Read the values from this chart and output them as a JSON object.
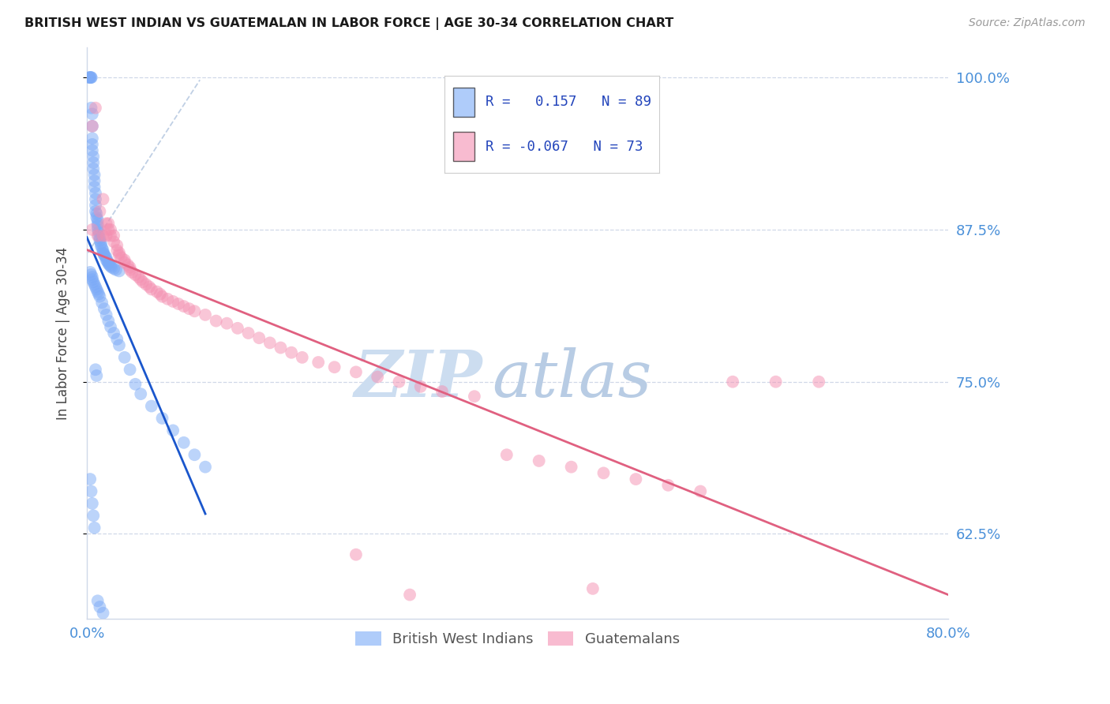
{
  "title": "BRITISH WEST INDIAN VS GUATEMALAN IN LABOR FORCE | AGE 30-34 CORRELATION CHART",
  "source_text": "Source: ZipAtlas.com",
  "ylabel": "In Labor Force | Age 30-34",
  "xlim": [
    0.0,
    0.8
  ],
  "ylim": [
    0.555,
    1.025
  ],
  "yticks": [
    0.625,
    0.75,
    0.875,
    1.0
  ],
  "ytick_labels": [
    "62.5%",
    "75.0%",
    "87.5%",
    "100.0%"
  ],
  "xtick_show": [
    "0.0%",
    "80.0%"
  ],
  "blue_R": 0.157,
  "blue_N": 89,
  "pink_R": -0.067,
  "pink_N": 73,
  "blue_color": "#7baaf7",
  "pink_color": "#f48fb1",
  "trendline_blue": "#1a56cc",
  "trendline_pink": "#e06080",
  "trendline_dashed_color": "#b0c4de",
  "axis_label_color": "#4a90d9",
  "grid_color": "#d0d8e8",
  "watermark_text": "ZIPatlas",
  "watermark_color": "#d5e5f5",
  "legend_border_color": "#cccccc",
  "blue_x": [
    0.002,
    0.003,
    0.003,
    0.004,
    0.004,
    0.004,
    0.005,
    0.005,
    0.005,
    0.005,
    0.005,
    0.006,
    0.006,
    0.006,
    0.007,
    0.007,
    0.007,
    0.008,
    0.008,
    0.008,
    0.008,
    0.009,
    0.009,
    0.01,
    0.01,
    0.01,
    0.01,
    0.011,
    0.011,
    0.012,
    0.012,
    0.013,
    0.013,
    0.014,
    0.015,
    0.015,
    0.016,
    0.016,
    0.017,
    0.018,
    0.018,
    0.019,
    0.02,
    0.02,
    0.021,
    0.022,
    0.023,
    0.025,
    0.027,
    0.03,
    0.003,
    0.004,
    0.005,
    0.005,
    0.006,
    0.007,
    0.008,
    0.009,
    0.01,
    0.011,
    0.012,
    0.014,
    0.016,
    0.018,
    0.02,
    0.022,
    0.025,
    0.028,
    0.03,
    0.035,
    0.04,
    0.045,
    0.05,
    0.06,
    0.07,
    0.08,
    0.09,
    0.1,
    0.11,
    0.003,
    0.004,
    0.005,
    0.006,
    0.007,
    0.008,
    0.009,
    0.01,
    0.012,
    0.015
  ],
  "blue_y": [
    1.0,
    1.0,
    1.0,
    1.0,
    1.0,
    0.975,
    0.97,
    0.96,
    0.95,
    0.945,
    0.94,
    0.935,
    0.93,
    0.925,
    0.92,
    0.915,
    0.91,
    0.905,
    0.9,
    0.895,
    0.89,
    0.888,
    0.885,
    0.883,
    0.88,
    0.878,
    0.875,
    0.873,
    0.87,
    0.868,
    0.866,
    0.864,
    0.862,
    0.86,
    0.858,
    0.856,
    0.855,
    0.854,
    0.853,
    0.852,
    0.85,
    0.849,
    0.848,
    0.847,
    0.846,
    0.845,
    0.844,
    0.843,
    0.842,
    0.841,
    0.84,
    0.838,
    0.836,
    0.834,
    0.832,
    0.83,
    0.828,
    0.826,
    0.824,
    0.822,
    0.82,
    0.815,
    0.81,
    0.805,
    0.8,
    0.795,
    0.79,
    0.785,
    0.78,
    0.77,
    0.76,
    0.748,
    0.74,
    0.73,
    0.72,
    0.71,
    0.7,
    0.69,
    0.68,
    0.67,
    0.66,
    0.65,
    0.64,
    0.63,
    0.76,
    0.755,
    0.57,
    0.565,
    0.56
  ],
  "pink_x": [
    0.005,
    0.005,
    0.008,
    0.01,
    0.012,
    0.015,
    0.015,
    0.018,
    0.018,
    0.02,
    0.02,
    0.022,
    0.022,
    0.025,
    0.025,
    0.028,
    0.028,
    0.03,
    0.03,
    0.032,
    0.035,
    0.035,
    0.038,
    0.04,
    0.04,
    0.042,
    0.045,
    0.048,
    0.05,
    0.052,
    0.055,
    0.058,
    0.06,
    0.065,
    0.068,
    0.07,
    0.075,
    0.08,
    0.085,
    0.09,
    0.095,
    0.1,
    0.11,
    0.12,
    0.13,
    0.14,
    0.15,
    0.16,
    0.17,
    0.18,
    0.19,
    0.2,
    0.215,
    0.23,
    0.25,
    0.27,
    0.29,
    0.31,
    0.33,
    0.36,
    0.39,
    0.42,
    0.45,
    0.48,
    0.51,
    0.54,
    0.57,
    0.6,
    0.64,
    0.68,
    0.25,
    0.3,
    0.47
  ],
  "pink_y": [
    0.96,
    0.875,
    0.975,
    0.87,
    0.89,
    0.9,
    0.87,
    0.88,
    0.87,
    0.88,
    0.875,
    0.875,
    0.87,
    0.87,
    0.865,
    0.862,
    0.858,
    0.856,
    0.854,
    0.852,
    0.85,
    0.848,
    0.846,
    0.844,
    0.842,
    0.84,
    0.838,
    0.836,
    0.834,
    0.832,
    0.83,
    0.828,
    0.826,
    0.824,
    0.822,
    0.82,
    0.818,
    0.816,
    0.814,
    0.812,
    0.81,
    0.808,
    0.805,
    0.8,
    0.798,
    0.794,
    0.79,
    0.786,
    0.782,
    0.778,
    0.774,
    0.77,
    0.766,
    0.762,
    0.758,
    0.754,
    0.75,
    0.746,
    0.742,
    0.738,
    0.69,
    0.685,
    0.68,
    0.675,
    0.67,
    0.665,
    0.66,
    0.75,
    0.75,
    0.75,
    0.608,
    0.575,
    0.58
  ]
}
